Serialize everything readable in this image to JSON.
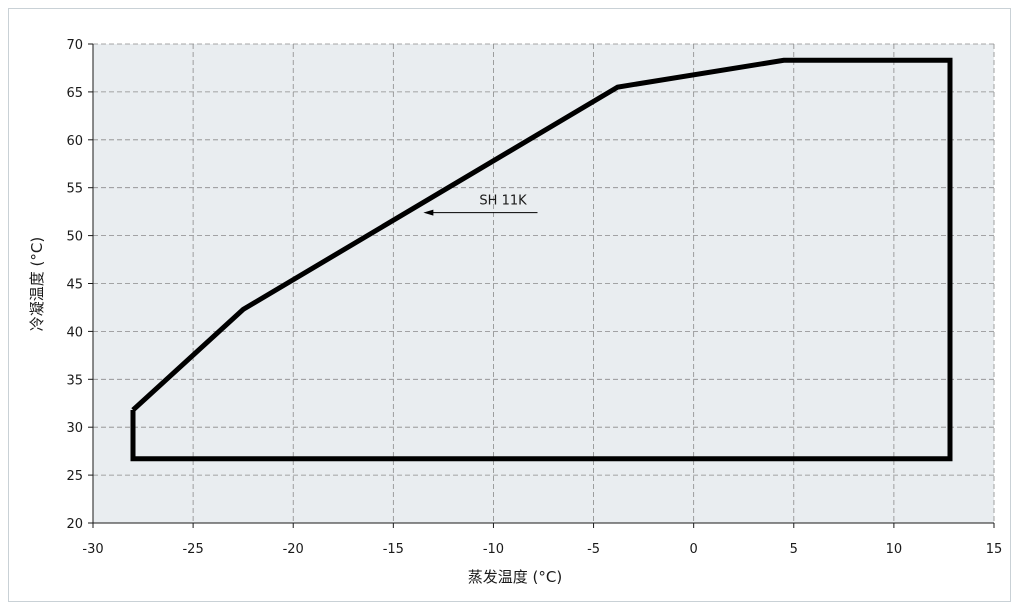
{
  "chart_data": {
    "type": "line",
    "title": "",
    "xlabel": "蒸发温度 (°C)",
    "ylabel": "冷凝温度 (°C)",
    "xlim": [
      -30,
      15
    ],
    "ylim": [
      20,
      70
    ],
    "xticks": [
      -30,
      -25,
      -20,
      -15,
      -10,
      -5,
      0,
      5,
      10,
      15
    ],
    "yticks": [
      20,
      25,
      30,
      35,
      40,
      45,
      50,
      55,
      60,
      65,
      70
    ],
    "grid": true,
    "colors": {
      "plot_background": "#e9edf0",
      "grid": "#8a8a8a",
      "envelope": "#000000"
    },
    "series": [
      {
        "x": [
          -28,
          -22.5,
          -3.8,
          4.5,
          12.8,
          12.8,
          -28,
          -28
        ],
        "y": [
          31.8,
          42.3,
          65.5,
          68.3,
          68.3,
          26.7,
          26.7,
          31.8
        ]
      }
    ],
    "annotations": [
      {
        "text": "SH 11K",
        "x": -13.5,
        "y": 52.4
      }
    ]
  }
}
